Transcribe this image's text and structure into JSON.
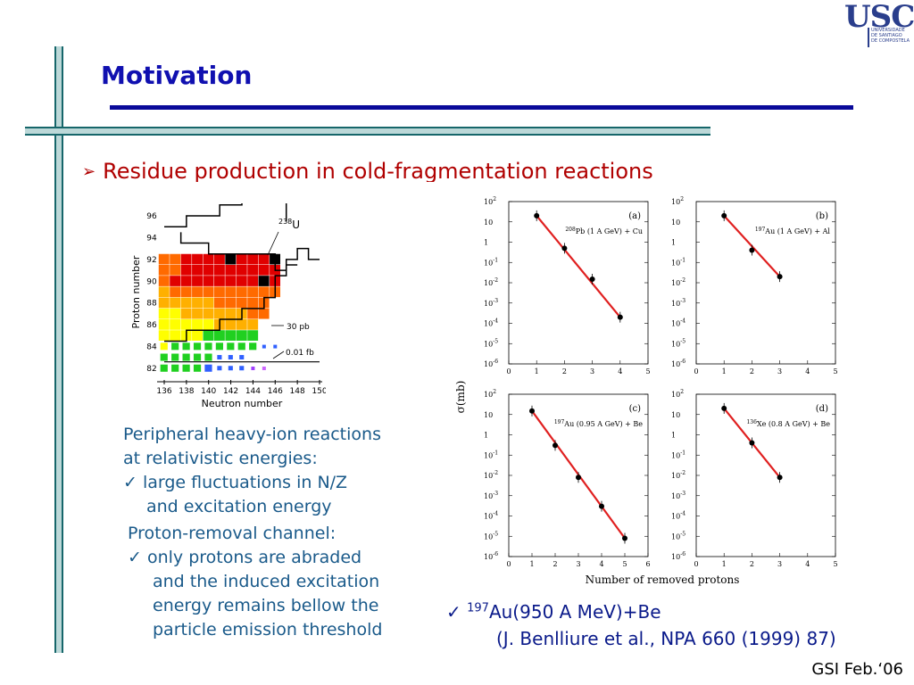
{
  "slide": {
    "title": "Motivation",
    "bullet_marker": "➢",
    "bullet_text": "Residue production in cold-fragmentation reactions"
  },
  "logo": {
    "text": "USC",
    "subtitle_lines": [
      "UNIVERSIDADE",
      "DE SANTIAGO",
      "DE COMPOSTELA"
    ]
  },
  "left_text": {
    "line1": "Peripheral heavy-ion reactions",
    "line2": "at relativistic energies:",
    "check1_line1": "large fluctuations in N/Z",
    "check1_line2": "and excitation energy",
    "line3": "Proton-removal channel:",
    "check2_line1": "only protons are abraded",
    "check2_line2": "and the induced excitation",
    "check2_line3": "energy remains bellow the",
    "check2_line4": "particle emission threshold",
    "check_mark": "✓"
  },
  "reference": {
    "mass": "197",
    "reaction": "Au(950 A MeV)+Be",
    "citation": "(J. Benlliure et al., NPA 660 (1999) 87)"
  },
  "footer": "GSI Feb.‘06",
  "chart_data": [
    {
      "type": "heatmap",
      "xlabel": "Neutron number",
      "ylabel": "Proton number",
      "x_ticks": [
        "136",
        "138",
        "140",
        "142",
        "144",
        "146",
        "148",
        "150"
      ],
      "y_ticks": [
        "82",
        "84",
        "86",
        "88",
        "90",
        "92",
        "94",
        "96"
      ],
      "annotations": [
        "238U",
        "30 pb",
        "0.01 fb"
      ],
      "annotation_superscript": "238",
      "annotation_element": "U",
      "colors": {
        "high": "#e00000",
        "upper": "#ff6a00",
        "mid": "#ffb000",
        "low": "#ffff00",
        "lower": "#20d020",
        "lowest": "#3060ff",
        "black": "#000000"
      }
    },
    {
      "type": "scatter",
      "panel": "(a)",
      "reaction_mass": "208",
      "reaction": "Pb (1 A GeV) + Cu",
      "x": [
        1,
        2,
        3,
        4
      ],
      "y": [
        20,
        0.5,
        0.015,
        0.0002
      ],
      "xlim": [
        0,
        5
      ],
      "ylim_exp": [
        -6,
        2
      ],
      "x_ticks": [
        "0",
        "1",
        "2",
        "3",
        "4",
        "5"
      ],
      "y_tick_exps": [
        "2",
        "",
        "-1",
        "-2",
        "-3",
        "-4",
        "-5",
        "-6"
      ]
    },
    {
      "type": "scatter",
      "panel": "(b)",
      "reaction_mass": "197",
      "reaction": "Au (1 A GeV) + Al",
      "x": [
        1,
        2,
        3
      ],
      "y": [
        20,
        0.4,
        0.02
      ],
      "xlim": [
        0,
        5
      ],
      "ylim_exp": [
        -6,
        2
      ],
      "x_ticks": [
        "0",
        "1",
        "2",
        "3",
        "4",
        "5"
      ],
      "y_tick_exps": [
        "2",
        "",
        "-1",
        "-2",
        "-3",
        "-4",
        "-5",
        "-6"
      ]
    },
    {
      "type": "scatter",
      "panel": "(c)",
      "reaction_mass": "197",
      "reaction": "Au (0.95 A GeV) + Be",
      "x": [
        1,
        2,
        3,
        4,
        5
      ],
      "y": [
        15,
        0.3,
        0.008,
        0.0003,
        8e-06
      ],
      "xlim": [
        0,
        6
      ],
      "ylim_exp": [
        -6,
        2
      ],
      "x_ticks": [
        "0",
        "1",
        "2",
        "3",
        "4",
        "5",
        "6"
      ],
      "y_tick_exps": [
        "2",
        "",
        "-1",
        "-2",
        "-3",
        "-4",
        "-5",
        "-6"
      ],
      "xlabel": "Number of removed protons",
      "ylabel": "σ(mb)"
    },
    {
      "type": "scatter",
      "panel": "(d)",
      "reaction_mass": "136",
      "reaction": "Xe (0.8 A GeV) + Be",
      "x": [
        1,
        2,
        3
      ],
      "y": [
        20,
        0.4,
        0.008
      ],
      "xlim": [
        0,
        5
      ],
      "ylim_exp": [
        -6,
        2
      ],
      "x_ticks": [
        "0",
        "1",
        "2",
        "3",
        "4",
        "5"
      ],
      "y_tick_exps": [
        "2",
        "",
        "-1",
        "-2",
        "-3",
        "-4",
        "-5",
        "-6"
      ]
    }
  ]
}
